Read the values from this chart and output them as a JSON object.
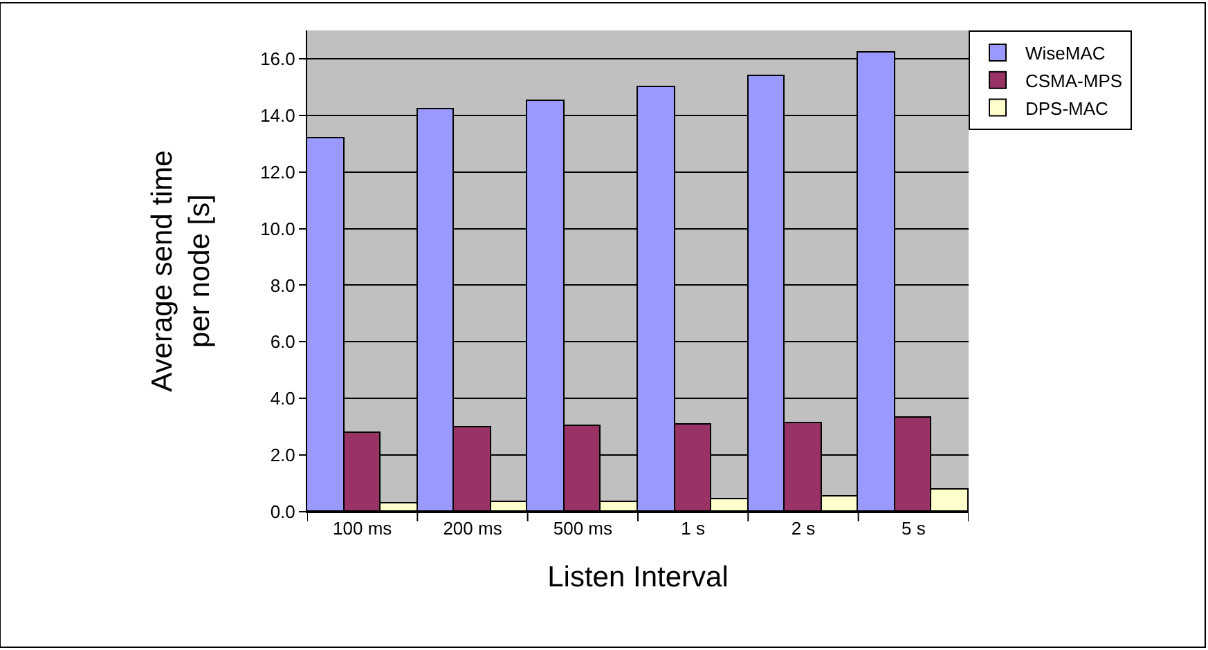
{
  "chart_data": {
    "type": "bar",
    "xlabel": "Listen Interval",
    "ylabel": "Average send time\nper node [s]",
    "categories": [
      "100 ms",
      "200 ms",
      "500 ms",
      "1 s",
      "2 s",
      "5 s"
    ],
    "series": [
      {
        "name": "WiseMAC",
        "color": "#9999ff",
        "values": [
          13.2,
          14.2,
          14.5,
          15.0,
          15.4,
          16.2
        ]
      },
      {
        "name": "CSMA-MPS",
        "color": "#993366",
        "values": [
          2.8,
          3.0,
          3.05,
          3.1,
          3.15,
          3.3
        ]
      },
      {
        "name": "DPS-MAC",
        "color": "#ffffcc",
        "values": [
          0.3,
          0.35,
          0.35,
          0.45,
          0.55,
          0.8
        ]
      }
    ],
    "ylim": [
      0,
      17
    ],
    "yticks": [
      {
        "value": 0,
        "label": "0.0"
      },
      {
        "value": 2,
        "label": "2.0"
      },
      {
        "value": 4,
        "label": "4.0"
      },
      {
        "value": 6,
        "label": "6.0"
      },
      {
        "value": 8,
        "label": "8.0"
      },
      {
        "value": 10,
        "label": "10.0"
      },
      {
        "value": 12,
        "label": "12.0"
      },
      {
        "value": 14,
        "label": "14.0"
      },
      {
        "value": 16,
        "label": "16.0"
      }
    ],
    "grid": "y",
    "legend": "top right"
  }
}
